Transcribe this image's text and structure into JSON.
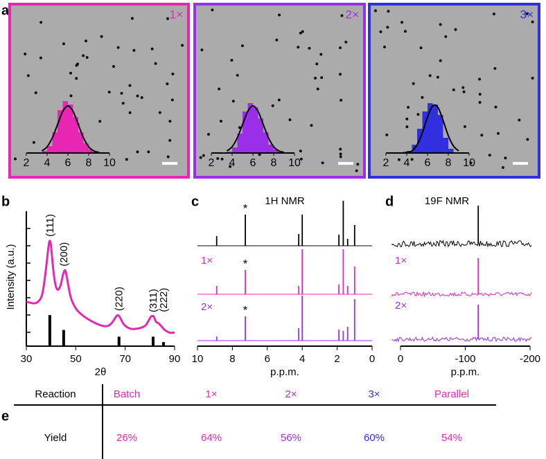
{
  "panel_labels": [
    "a",
    "b",
    "c",
    "d",
    "e"
  ],
  "chart_data": [
    {
      "type": "histogram",
      "label": "1×",
      "color": "#e826b4",
      "bins": [
        3.5,
        4,
        4.5,
        5,
        5.5,
        6,
        6.5,
        7,
        7.5,
        8,
        8.5,
        9
      ],
      "counts": [
        3,
        10,
        30,
        62,
        75,
        70,
        52,
        30,
        14,
        5,
        2
      ],
      "fit": [
        3,
        9,
        22,
        41,
        60,
        68,
        60,
        41,
        22,
        9,
        3,
        1
      ],
      "fit_color": "#000000",
      "ylim": [
        0,
        80
      ],
      "xlim": [
        2,
        10
      ],
      "xticks": [
        2,
        4,
        6,
        8,
        10
      ]
    },
    {
      "type": "histogram",
      "label": "2×",
      "color": "#9b2ee8",
      "bins": [
        3.5,
        4,
        4.5,
        5,
        5.5,
        6,
        6.5,
        7,
        7.5,
        8,
        8.5,
        9
      ],
      "counts": [
        2,
        8,
        28,
        60,
        72,
        66,
        50,
        30,
        12,
        5,
        2
      ],
      "fit": [
        3,
        9,
        22,
        41,
        60,
        68,
        60,
        41,
        22,
        9,
        3,
        1
      ],
      "fit_color": "#000000",
      "ylim": [
        0,
        80
      ],
      "xlim": [
        2,
        10
      ],
      "xticks": [
        2,
        4,
        6,
        8,
        10
      ]
    },
    {
      "type": "histogram",
      "label": "3×",
      "color": "#3030e0",
      "bins": [
        3.5,
        4,
        4.5,
        5,
        5.5,
        6,
        6.5,
        7,
        7.5,
        8,
        8.5,
        9
      ],
      "counts": [
        0,
        3,
        12,
        35,
        60,
        72,
        70,
        55,
        22,
        6,
        1
      ],
      "fit": [
        0,
        1,
        3,
        12,
        29,
        52,
        68,
        66,
        47,
        25,
        10,
        3
      ],
      "fit_color": "#000000",
      "ylim": [
        0,
        80
      ],
      "xlim": [
        2,
        10
      ],
      "xticks": [
        2,
        4,
        6,
        8,
        10
      ]
    },
    {
      "type": "line",
      "ylabel": "Intensity (a.u.)",
      "xlabel": "2θ",
      "xlim": [
        30,
        90
      ],
      "xticks": [
        30,
        50,
        70,
        90
      ],
      "ylim": [
        0,
        100
      ],
      "x": [
        30,
        32,
        34,
        36,
        37,
        38,
        39,
        39.5,
        40,
        41,
        42,
        43,
        44,
        45,
        45.8,
        46.5,
        48,
        50,
        52,
        55,
        58,
        61,
        63,
        64.5,
        66,
        67,
        68,
        69.5,
        72,
        75,
        78,
        79.5,
        80.5,
        81.5,
        82.5,
        83.5,
        84.5,
        86,
        88,
        90
      ],
      "series": [
        {
          "color": "#e826b4",
          "values": [
            33,
            32,
            32,
            36,
            44,
            58,
            74,
            78,
            74,
            55,
            44,
            42,
            46,
            54,
            56,
            50,
            36,
            28,
            24,
            20,
            17,
            15,
            15,
            17,
            21,
            23,
            21,
            16,
            13,
            13,
            15,
            19,
            22,
            22,
            18,
            17,
            15,
            12,
            10,
            10
          ]
        }
      ],
      "reference": {
        "color": "#000000",
        "x": [
          39.5,
          45.1,
          67.5,
          81.3,
          85.5
        ],
        "values": [
          23,
          12,
          7,
          7,
          3
        ],
        "labels": [
          "(111)",
          "(200)",
          "(220)",
          "(311)",
          "(222)"
        ]
      }
    },
    {
      "type": "stem",
      "title": "1H NMR",
      "xlabel": "p.p.m.",
      "xlim": [
        10,
        0
      ],
      "xticks": [
        10,
        8,
        6,
        4,
        2,
        0
      ],
      "ylim": [
        0,
        70
      ],
      "x": [
        8.9,
        7.26,
        4.2,
        4.0,
        1.9,
        1.65,
        1.4,
        1.0
      ],
      "series": [
        {
          "color": "#000000",
          "marker": "*",
          "values": [
            14,
            45,
            17,
            45,
            16,
            65,
            10,
            30
          ]
        },
        {
          "name": "1×",
          "color": "#e826b4",
          "marker": "*",
          "values": [
            12,
            35,
            12,
            65,
            14,
            65,
            12,
            40
          ]
        },
        {
          "name": "2×",
          "color": "#9b2ee8",
          "marker": "*",
          "values": [
            6,
            35,
            18,
            65,
            16,
            14,
            20,
            60
          ]
        }
      ]
    },
    {
      "type": "stem",
      "title": "19F NMR",
      "xlabel": "p.p.m.",
      "xlim": [
        0,
        -200
      ],
      "xticks": [
        0,
        -100,
        -200
      ],
      "ylim": [
        0,
        70
      ],
      "x": [
        -120
      ],
      "series": [
        {
          "color": "#000000",
          "values": [
            55
          ]
        },
        {
          "name": "1×",
          "color": "#e826b4",
          "values": [
            52
          ]
        },
        {
          "name": "2×",
          "color": "#9b2ee8",
          "values": [
            50
          ]
        }
      ]
    }
  ],
  "table": {
    "rows": [
      [
        "Reaction",
        "Batch",
        "1×",
        "2×",
        "3×",
        "Parallel"
      ],
      [
        "Yield",
        "26%",
        "64%",
        "56%",
        "60%",
        "54%"
      ]
    ],
    "colors": [
      "#000000",
      "#e826b4",
      "#e826b4",
      "#9b2ee8",
      "#3030e0",
      "#e826b4"
    ]
  }
}
